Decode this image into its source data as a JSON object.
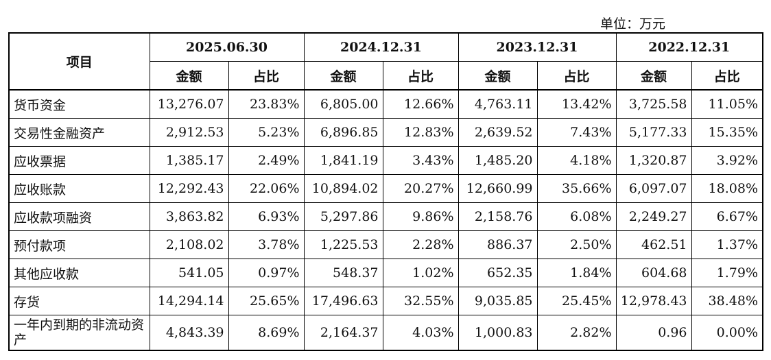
{
  "unit_label": "单位：万元",
  "header": {
    "item_label": "项目",
    "periods": [
      "2025.06.30",
      "2024.12.31",
      "2023.12.31",
      "2022.12.31"
    ],
    "sub_amount": "金额",
    "sub_ratio": "占比"
  },
  "rows": [
    {
      "name": "货币资金",
      "v": [
        "13,276.07",
        "23.83%",
        "6,805.00",
        "12.66%",
        "4,763.11",
        "13.42%",
        "3,725.58",
        "11.05%"
      ]
    },
    {
      "name": "交易性金融资产",
      "v": [
        "2,912.53",
        "5.23%",
        "6,896.85",
        "12.83%",
        "2,639.52",
        "7.43%",
        "5,177.33",
        "15.35%"
      ]
    },
    {
      "name": "应收票据",
      "v": [
        "1,385.17",
        "2.49%",
        "1,841.19",
        "3.43%",
        "1,485.20",
        "4.18%",
        "1,320.87",
        "3.92%"
      ]
    },
    {
      "name": "应收账款",
      "v": [
        "12,292.43",
        "22.06%",
        "10,894.02",
        "20.27%",
        "12,660.99",
        "35.66%",
        "6,097.07",
        "18.08%"
      ]
    },
    {
      "name": "应收款项融资",
      "v": [
        "3,863.82",
        "6.93%",
        "5,297.86",
        "9.86%",
        "2,158.76",
        "6.08%",
        "2,249.27",
        "6.67%"
      ]
    },
    {
      "name": "预付款项",
      "v": [
        "2,108.02",
        "3.78%",
        "1,225.53",
        "2.28%",
        "886.37",
        "2.50%",
        "462.51",
        "1.37%"
      ]
    },
    {
      "name": "其他应收款",
      "v": [
        "541.05",
        "0.97%",
        "548.37",
        "1.02%",
        "652.35",
        "1.84%",
        "604.68",
        "1.79%"
      ]
    },
    {
      "name": "存货",
      "v": [
        "14,294.14",
        "25.65%",
        "17,496.63",
        "32.55%",
        "9,035.85",
        "25.45%",
        "12,978.43",
        "38.48%"
      ]
    },
    {
      "name": "一年内到期的非流动资产",
      "v": [
        "4,843.39",
        "8.69%",
        "2,164.37",
        "4.03%",
        "1,000.83",
        "2.82%",
        "0.96",
        "0.00%"
      ]
    }
  ]
}
